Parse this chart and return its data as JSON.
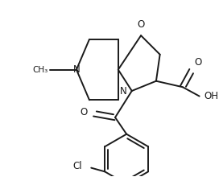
{
  "background_color": "#ffffff",
  "line_color": "#1a1a1a",
  "line_width": 1.4,
  "font_size": 8.5,
  "figsize": [
    2.72,
    2.25
  ],
  "dpi": 100,
  "xlim": [
    0,
    272
  ],
  "ylim": [
    0,
    225
  ]
}
